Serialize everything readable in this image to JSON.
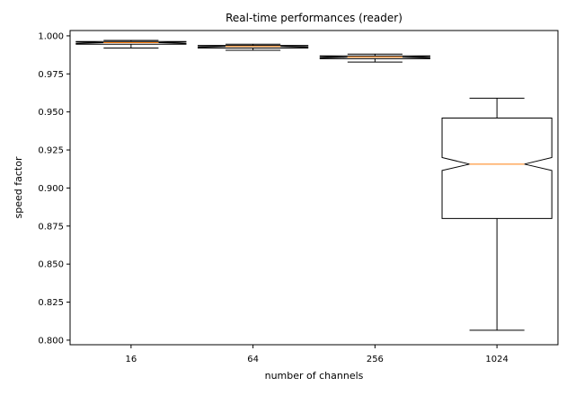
{
  "chart_data": {
    "type": "box",
    "title": "Real-time performances (reader)",
    "xlabel": "number of channels",
    "ylabel": "speed factor",
    "ylim": [
      0.797,
      1.0035
    ],
    "yticks": [
      0.8,
      0.825,
      0.85,
      0.875,
      0.9,
      0.925,
      0.95,
      0.975,
      1.0
    ],
    "ytick_labels": [
      "0.800",
      "0.825",
      "0.850",
      "0.875",
      "0.900",
      "0.925",
      "0.950",
      "0.975",
      "1.000"
    ],
    "notched": true,
    "grid": false,
    "colors": {
      "box": "#000000",
      "median": "#ff7f0e"
    },
    "categories": [
      "16",
      "64",
      "256",
      "1024"
    ],
    "boxes": [
      {
        "label": "16",
        "whislo": 0.992,
        "q1": 0.9945,
        "med": 0.9955,
        "q3": 0.9963,
        "whishi": 0.997,
        "notch_lo": 0.995,
        "notch_hi": 0.996
      },
      {
        "label": "64",
        "whislo": 0.9905,
        "q1": 0.992,
        "med": 0.993,
        "q3": 0.9937,
        "whishi": 0.9945,
        "notch_lo": 0.9925,
        "notch_hi": 0.9934
      },
      {
        "label": "256",
        "whislo": 0.9828,
        "q1": 0.985,
        "med": 0.986,
        "q3": 0.9868,
        "whishi": 0.988,
        "notch_lo": 0.9855,
        "notch_hi": 0.9864
      },
      {
        "label": "1024",
        "whislo": 0.8065,
        "q1": 0.88,
        "med": 0.9157,
        "q3": 0.946,
        "whishi": 0.959,
        "notch_lo": 0.9115,
        "notch_hi": 0.92
      }
    ]
  }
}
